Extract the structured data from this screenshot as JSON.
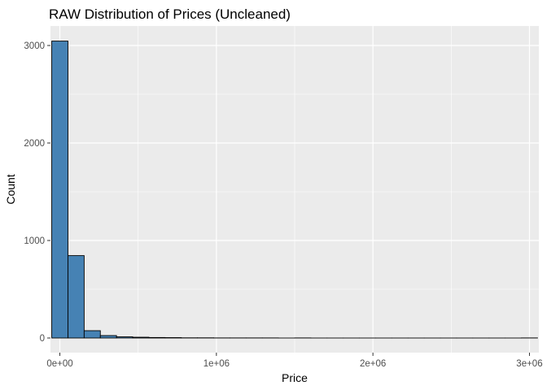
{
  "chart_data": {
    "type": "histogram",
    "title": "RAW Distribution of Prices (Uncleaned)",
    "xlabel": "Price",
    "ylabel": "Count",
    "xlim": [
      -60000,
      3060000
    ],
    "ylim": [
      -150,
      3200
    ],
    "x_ticks": [
      {
        "value": 0,
        "label": "0e+00"
      },
      {
        "value": 1000000,
        "label": "1e+06"
      },
      {
        "value": 2000000,
        "label": "2e+06"
      },
      {
        "value": 3000000,
        "label": "3e+06"
      }
    ],
    "y_ticks": [
      {
        "value": 0,
        "label": "0"
      },
      {
        "value": 1000,
        "label": "1000"
      },
      {
        "value": 2000,
        "label": "2000"
      },
      {
        "value": 3000,
        "label": "3000"
      }
    ],
    "bin_width": 103448,
    "bin_centers_start": 0,
    "counts": [
      3045,
      845,
      75,
      25,
      12,
      8,
      5,
      4,
      2,
      2,
      1,
      1,
      1,
      1,
      0,
      1,
      0,
      0,
      0,
      0,
      0,
      0,
      0,
      0,
      0,
      0,
      0,
      0,
      0,
      1
    ],
    "grid": true,
    "fill_color": "#4682b4",
    "border_color": "#000000",
    "panel_color": "#ebebeb",
    "grid_color": "#ffffff"
  }
}
